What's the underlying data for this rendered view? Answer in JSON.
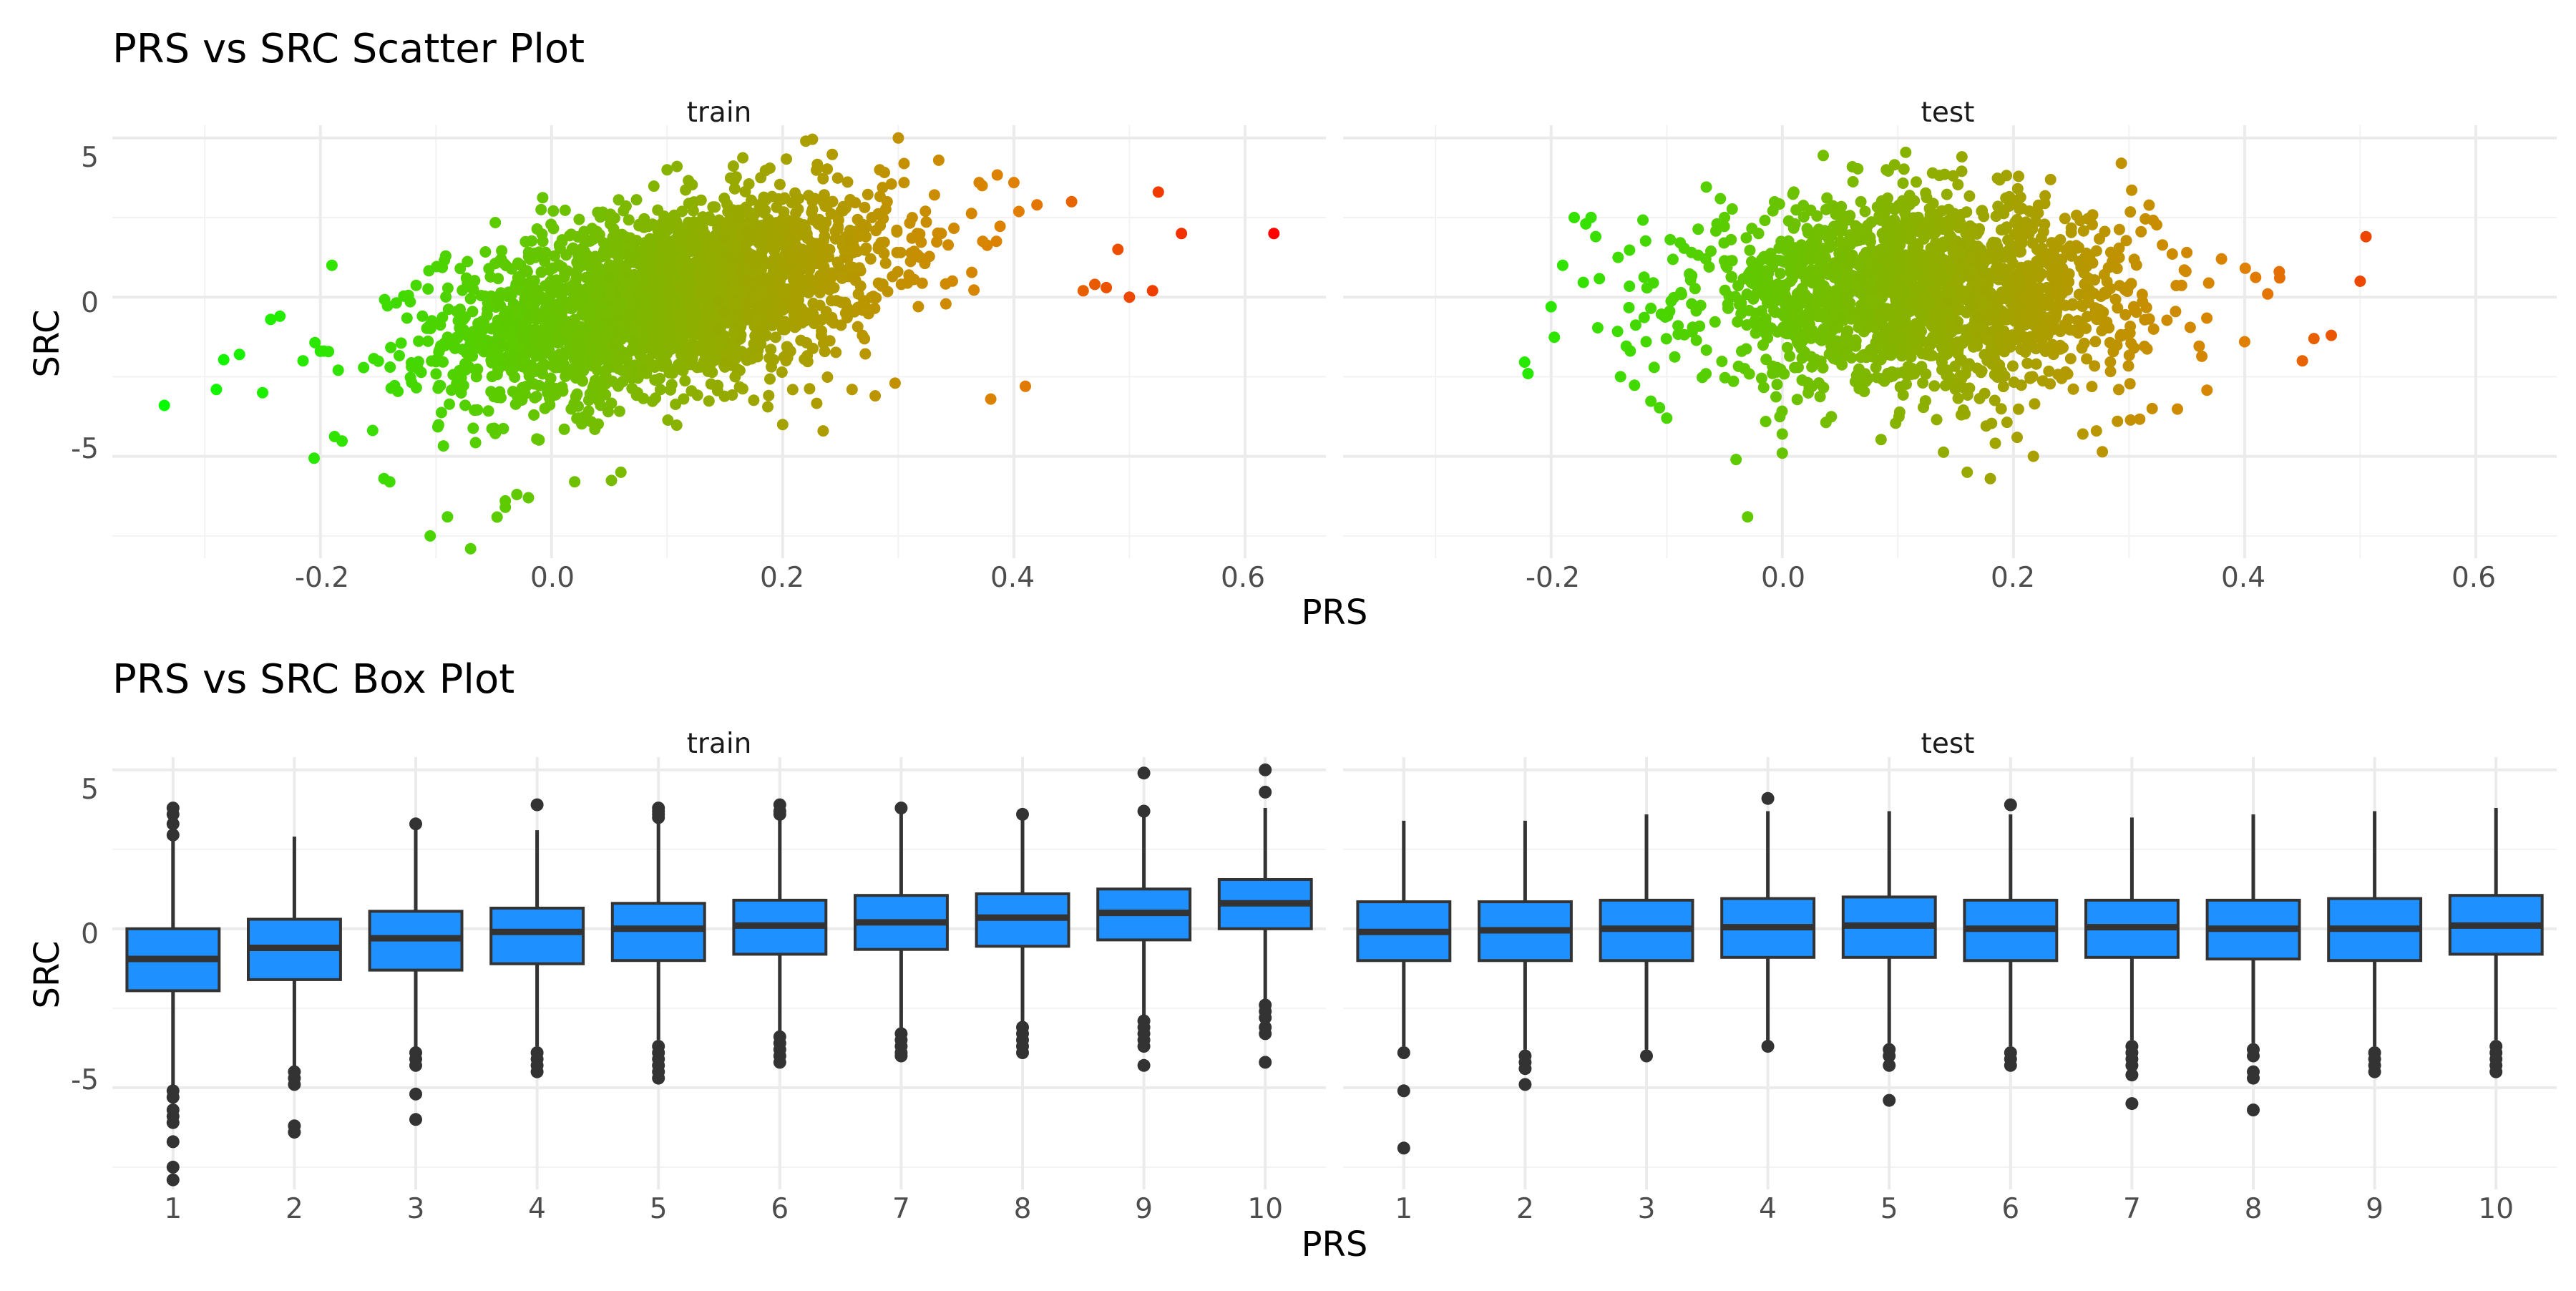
{
  "chart_data": [
    {
      "type": "scatter",
      "title": "PRS vs SRC Scatter Plot",
      "xlabel": "PRS",
      "ylabel": "SRC",
      "facets": [
        "train",
        "test"
      ],
      "xlim": [
        -0.38,
        0.67
      ],
      "ylim": [
        -8.2,
        5.4
      ],
      "x_ticks": [
        "-0.2",
        "0.0",
        "0.2",
        "0.4",
        "0.6"
      ],
      "y_ticks": [
        "5",
        "0",
        "-5"
      ],
      "grid": true,
      "color_scale": {
        "low": "#00ff00",
        "mid": "#e08000",
        "high": "#ff0000"
      },
      "series": [
        {
          "facet": "train",
          "points_x": [
            -0.335,
            -0.29,
            -0.27,
            -0.25,
            -0.243,
            -0.235,
            -0.215,
            -0.2,
            -0.19,
            -0.145,
            -0.14,
            -0.105,
            -0.09,
            -0.07,
            -0.04,
            -0.04,
            -0.03,
            -0.02,
            0.02,
            0.06,
            0.1,
            0.2,
            0.22,
            0.235,
            0.26,
            0.28,
            0.3,
            0.305,
            0.335,
            0.37,
            0.38,
            0.4,
            0.41,
            0.42,
            0.45,
            0.46,
            0.47,
            0.48,
            0.49,
            0.5,
            0.52,
            0.525,
            0.545,
            0.625
          ],
          "points_y": [
            -3.4,
            -2.9,
            -1.8,
            -3.0,
            -0.7,
            -0.6,
            -2.0,
            -1.7,
            1.0,
            -5.7,
            -5.8,
            -7.5,
            -6.9,
            -7.9,
            -6.4,
            -6.6,
            -6.2,
            -6.3,
            -5.8,
            -5.5,
            4.0,
            -4.0,
            4.9,
            -4.2,
            -2.9,
            -3.1,
            5.0,
            3.6,
            4.3,
            3.6,
            -3.2,
            3.6,
            -2.8,
            2.9,
            3.0,
            0.2,
            0.4,
            0.3,
            1.5,
            0.0,
            0.2,
            3.3,
            2.0,
            2.0
          ]
        },
        {
          "facet": "test",
          "points_x": [
            -0.22,
            -0.2,
            -0.19,
            -0.18,
            -0.17,
            -0.14,
            -0.1,
            -0.04,
            -0.03,
            0.0,
            0.0,
            0.01,
            0.09,
            0.13,
            0.16,
            0.18,
            0.26,
            0.29,
            0.32,
            0.35,
            0.38,
            0.4,
            0.42,
            0.43,
            0.45,
            0.46,
            0.475,
            0.5,
            0.505
          ],
          "points_y": [
            -2.4,
            -0.3,
            1.0,
            2.5,
            2.3,
            -2.5,
            -3.8,
            -5.1,
            -6.9,
            -4.3,
            -4.9,
            3.3,
            4.0,
            3.9,
            -5.5,
            -5.7,
            -4.3,
            -3.9,
            -3.5,
            1.4,
            1.2,
            -1.4,
            0.1,
            0.8,
            -2.0,
            -1.3,
            -1.2,
            0.5,
            1.9
          ]
        }
      ]
    },
    {
      "type": "box",
      "title": "PRS vs SRC Box Plot",
      "xlabel": "PRS",
      "ylabel": "SRC",
      "facets": [
        "train",
        "test"
      ],
      "categories": [
        "1",
        "2",
        "3",
        "4",
        "5",
        "6",
        "7",
        "8",
        "9",
        "10"
      ],
      "ylim": [
        -8.2,
        5.4
      ],
      "y_ticks": [
        "5",
        "0",
        "-5"
      ],
      "grid": true,
      "box_color": "#1e90ff",
      "series": [
        {
          "facet": "train",
          "boxes": [
            {
              "q1": -1.95,
              "median": -0.95,
              "q3": 0.0,
              "whisker_low": -4.9,
              "whisker_high": 2.9,
              "outliers": [
                3.8,
                3.6,
                3.3,
                2.95,
                -5.1,
                -5.3,
                -5.7,
                -5.9,
                -6.1,
                -6.7,
                -7.5,
                -7.9
              ]
            },
            {
              "q1": -1.6,
              "median": -0.6,
              "q3": 0.3,
              "whisker_low": -4.4,
              "whisker_high": 2.9,
              "outliers": [
                -4.5,
                -4.7,
                -4.9,
                -6.2,
                -6.4
              ]
            },
            {
              "q1": -1.3,
              "median": -0.3,
              "q3": 0.55,
              "whisker_low": -3.8,
              "whisker_high": 3.2,
              "outliers": [
                3.3,
                -3.9,
                -4.1,
                -4.3,
                -5.2,
                -6.0
              ]
            },
            {
              "q1": -1.1,
              "median": -0.1,
              "q3": 0.65,
              "whisker_low": -3.7,
              "whisker_high": 3.1,
              "outliers": [
                3.9,
                -3.9,
                -4.1,
                -4.3,
                -4.5
              ]
            },
            {
              "q1": -1.0,
              "median": 0.0,
              "q3": 0.8,
              "whisker_low": -3.5,
              "whisker_high": 3.4,
              "outliers": [
                3.8,
                3.7,
                3.6,
                3.5,
                -3.7,
                -3.9,
                -4.1,
                -4.3,
                -4.5,
                -4.7
              ]
            },
            {
              "q1": -0.8,
              "median": 0.1,
              "q3": 0.9,
              "whisker_low": -3.3,
              "whisker_high": 3.5,
              "outliers": [
                3.9,
                3.7,
                3.6,
                -3.4,
                -3.6,
                -3.8,
                -4.0,
                -4.2
              ]
            },
            {
              "q1": -0.65,
              "median": 0.2,
              "q3": 1.05,
              "whisker_low": -3.2,
              "whisker_high": 3.8,
              "outliers": [
                3.8,
                -3.3,
                -3.5,
                -3.7,
                -3.9,
                -4.0
              ]
            },
            {
              "q1": -0.55,
              "median": 0.35,
              "q3": 1.1,
              "whisker_low": -3.0,
              "whisker_high": 3.5,
              "outliers": [
                3.6,
                -3.1,
                -3.3,
                -3.5,
                -3.7,
                -3.9
              ]
            },
            {
              "q1": -0.35,
              "median": 0.5,
              "q3": 1.25,
              "whisker_low": -2.8,
              "whisker_high": 3.6,
              "outliers": [
                4.9,
                3.7,
                -2.9,
                -3.1,
                -3.3,
                -3.5,
                -3.7,
                -4.3
              ]
            },
            {
              "q1": 0.0,
              "median": 0.8,
              "q3": 1.55,
              "whisker_low": -2.3,
              "whisker_high": 3.8,
              "outliers": [
                5.0,
                4.3,
                -2.4,
                -2.6,
                -2.8,
                -3.1,
                -3.3,
                -4.2
              ]
            }
          ]
        },
        {
          "facet": "test",
          "boxes": [
            {
              "q1": -1.0,
              "median": -0.1,
              "q3": 0.85,
              "whisker_low": -3.7,
              "whisker_high": 3.4,
              "outliers": [
                -3.9,
                -5.1,
                -6.9
              ]
            },
            {
              "q1": -1.0,
              "median": -0.05,
              "q3": 0.85,
              "whisker_low": -3.8,
              "whisker_high": 3.4,
              "outliers": [
                -4.0,
                -4.2,
                -4.4,
                -4.9
              ]
            },
            {
              "q1": -1.0,
              "median": 0.0,
              "q3": 0.9,
              "whisker_low": -3.8,
              "whisker_high": 3.6,
              "outliers": [
                -4.0
              ]
            },
            {
              "q1": -0.9,
              "median": 0.05,
              "q3": 0.95,
              "whisker_low": -3.6,
              "whisker_high": 3.7,
              "outliers": [
                4.1,
                -3.7
              ]
            },
            {
              "q1": -0.9,
              "median": 0.1,
              "q3": 1.0,
              "whisker_low": -3.6,
              "whisker_high": 3.7,
              "outliers": [
                -3.8,
                -4.0,
                -4.3,
                -5.4
              ]
            },
            {
              "q1": -1.0,
              "median": 0.0,
              "q3": 0.9,
              "whisker_low": -3.7,
              "whisker_high": 3.6,
              "outliers": [
                3.9,
                -3.9,
                -4.1,
                -4.3
              ]
            },
            {
              "q1": -0.9,
              "median": 0.05,
              "q3": 0.9,
              "whisker_low": -3.5,
              "whisker_high": 3.5,
              "outliers": [
                -3.7,
                -3.9,
                -4.1,
                -4.3,
                -4.6,
                -5.5
              ]
            },
            {
              "q1": -0.95,
              "median": 0.0,
              "q3": 0.9,
              "whisker_low": -3.6,
              "whisker_high": 3.6,
              "outliers": [
                -3.8,
                -4.0,
                -4.5,
                -4.7,
                -5.7
              ]
            },
            {
              "q1": -1.0,
              "median": 0.0,
              "q3": 0.95,
              "whisker_low": -3.7,
              "whisker_high": 3.7,
              "outliers": [
                -3.9,
                -4.1,
                -4.3,
                -4.5
              ]
            },
            {
              "q1": -0.8,
              "median": 0.1,
              "q3": 1.05,
              "whisker_low": -3.5,
              "whisker_high": 3.8,
              "outliers": [
                -3.7,
                -3.9,
                -4.1,
                -4.3,
                -4.5
              ]
            }
          ]
        }
      ]
    }
  ]
}
